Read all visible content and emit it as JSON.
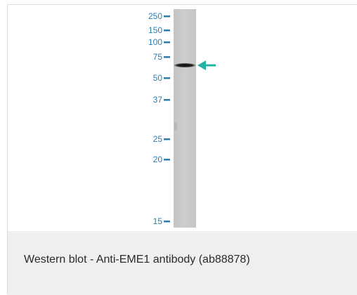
{
  "figure": {
    "marker_color": "#2a7fb0",
    "arrow_color": "#22b3a3",
    "markers": [
      "250",
      "150",
      "100",
      "75",
      "50",
      "37",
      "25",
      "20",
      "15"
    ],
    "caption": "Western blot - Anti-EME1 antibody (ab88878)"
  }
}
